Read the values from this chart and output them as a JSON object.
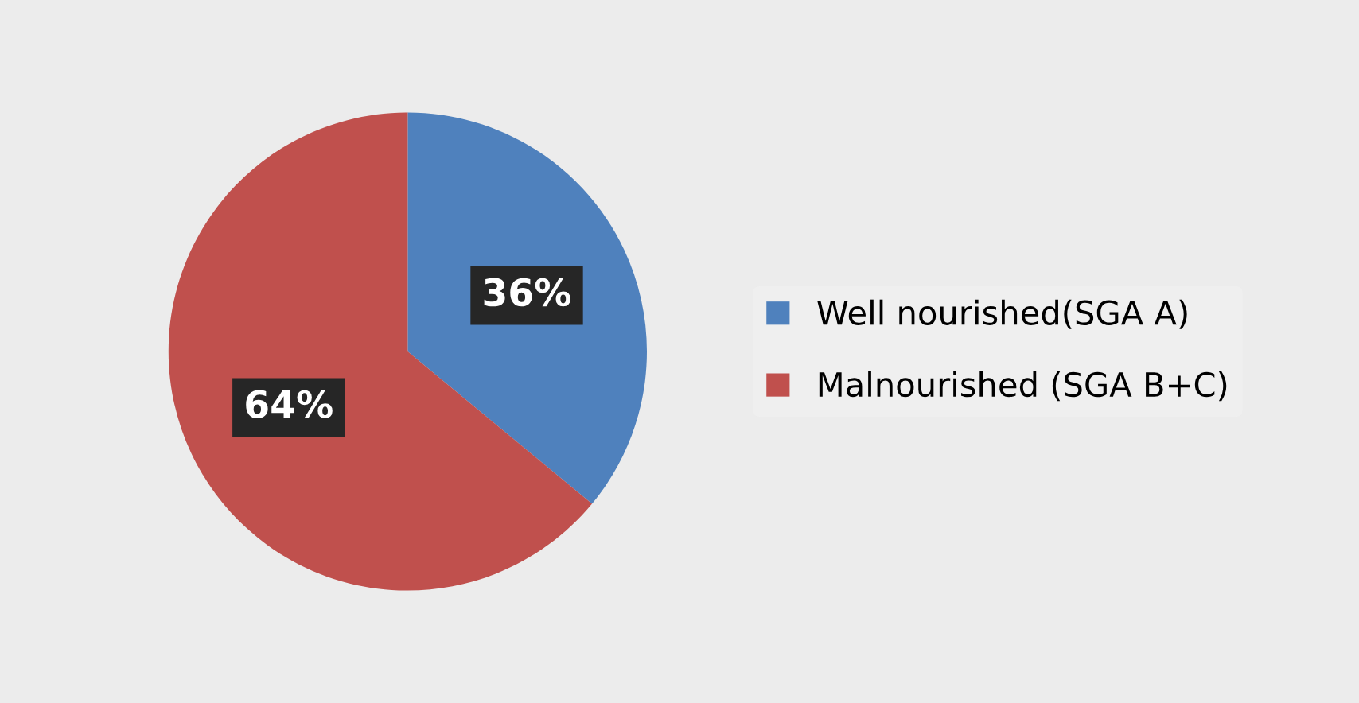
{
  "chart_data": {
    "type": "pie",
    "categories": [
      "Well nourished(SGA A)",
      "Malnourished (SGA B+C)"
    ],
    "values": [
      36,
      64
    ],
    "colors": [
      "#4f81bd",
      "#c0504d"
    ],
    "value_labels": [
      "36%",
      "64%"
    ],
    "legend": "right"
  }
}
